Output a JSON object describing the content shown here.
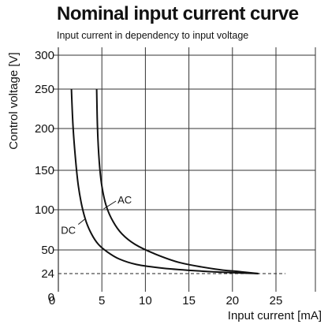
{
  "chart_data": {
    "type": "line",
    "title": "Nominal input current curve",
    "subtitle": "Input current in dependency to input voltage",
    "xlabel": "Input current [mA]",
    "ylabel": "Control voltage [V]",
    "xlim": [
      0,
      25
    ],
    "ylim": [
      0,
      300
    ],
    "x_ticks": [
      0,
      5,
      10,
      15,
      20,
      25
    ],
    "y_ticks": [
      0,
      24,
      50,
      100,
      150,
      200,
      250,
      300
    ],
    "grid": true,
    "series": [
      {
        "name": "DC",
        "color": "#111111",
        "x": [
          1.5,
          1.7,
          2.0,
          2.3,
          2.7,
          3.2,
          3.8,
          4.6,
          5.6,
          7.0,
          9.0,
          12.0,
          16.0,
          20.0,
          23.0
        ],
        "y": [
          250,
          200,
          160,
          130,
          105,
          85,
          70,
          57,
          48,
          40,
          34,
          30,
          27,
          25,
          24
        ]
      },
      {
        "name": "AC",
        "color": "#111111",
        "x": [
          4.4,
          4.5,
          4.7,
          5.0,
          5.5,
          6.3,
          7.3,
          8.8,
          11.0,
          14.0,
          18.0,
          21.0,
          23.0
        ],
        "y": [
          250,
          200,
          160,
          130,
          105,
          85,
          70,
          57,
          46,
          36,
          29,
          26,
          24
        ]
      }
    ],
    "reference_line": {
      "y": 24,
      "style": "dashed"
    },
    "annotations": [
      {
        "text": "AC",
        "x": 6.8,
        "y": 108
      },
      {
        "text": "DC",
        "x": 0.3,
        "y": 70
      }
    ]
  }
}
